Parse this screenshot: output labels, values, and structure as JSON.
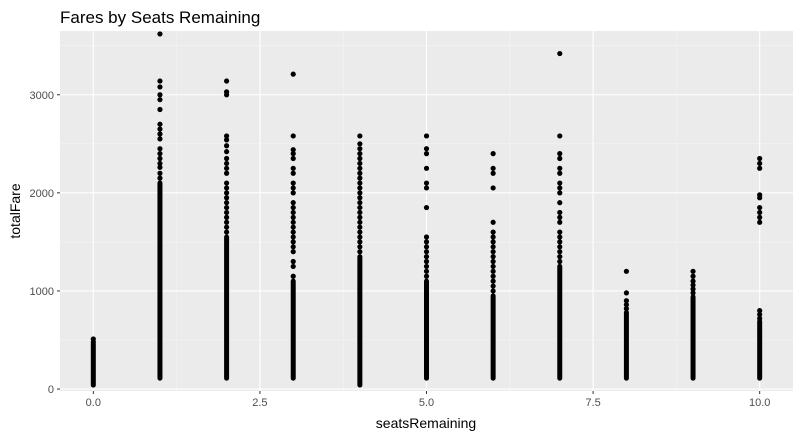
{
  "chart_data": {
    "type": "scatter",
    "title": "Fares by Seats Remaining",
    "xlabel": "seatsRemaining",
    "ylabel": "totalFare",
    "xlim": [
      -0.5,
      10.5
    ],
    "ylim": [
      -20,
      3650
    ],
    "x_ticks": [
      0.0,
      2.5,
      5.0,
      7.5,
      10.0
    ],
    "x_tick_labels": [
      "0.0",
      "2.5",
      "5.0",
      "7.5",
      "10.0"
    ],
    "y_ticks": [
      0,
      1000,
      2000,
      3000
    ],
    "y_tick_labels": [
      "0",
      "1000",
      "2000",
      "3000"
    ],
    "grid": true,
    "colors": {
      "panel": "#ebebeb",
      "grid_major": "#ffffff",
      "point": "#000000",
      "tick": "#4d4d4d"
    },
    "columns": [
      {
        "x": 0,
        "min": 40,
        "dense_max": 460,
        "outliers": [
          480,
          510
        ]
      },
      {
        "x": 1,
        "min": 110,
        "dense_max": 2100,
        "outliers": [
          2150,
          2200,
          2260,
          2300,
          2350,
          2400,
          2450,
          2550,
          2600,
          2650,
          2700,
          2850,
          2950,
          3000,
          3080,
          3140,
          3620
        ]
      },
      {
        "x": 2,
        "min": 110,
        "dense_max": 1550,
        "outliers": [
          1600,
          1650,
          1700,
          1750,
          1800,
          1850,
          1900,
          1950,
          2000,
          2050,
          2100,
          2200,
          2250,
          2300,
          2350,
          2420,
          2480,
          2540,
          2580,
          3000,
          3030,
          3140
        ]
      },
      {
        "x": 3,
        "min": 110,
        "dense_max": 1100,
        "outliers": [
          1150,
          1250,
          1300,
          1400,
          1450,
          1500,
          1550,
          1600,
          1650,
          1700,
          1750,
          1800,
          1850,
          1900,
          2000,
          2050,
          2100,
          2200,
          2250,
          2350,
          2400,
          2440,
          2580,
          3210
        ]
      },
      {
        "x": 4,
        "min": 40,
        "dense_max": 1350,
        "outliers": [
          1400,
          1450,
          1500,
          1550,
          1600,
          1650,
          1700,
          1750,
          1800,
          1850,
          1900,
          1950,
          2000,
          2050,
          2100,
          2150,
          2200,
          2250,
          2300,
          2350,
          2400,
          2450,
          2500,
          2580
        ]
      },
      {
        "x": 5,
        "min": 110,
        "dense_max": 1100,
        "outliers": [
          1150,
          1200,
          1250,
          1300,
          1350,
          1400,
          1450,
          1500,
          1550,
          1850,
          2050,
          2100,
          2250,
          2400,
          2450,
          2580
        ]
      },
      {
        "x": 6,
        "min": 110,
        "dense_max": 950,
        "outliers": [
          1000,
          1050,
          1100,
          1150,
          1200,
          1250,
          1300,
          1350,
          1400,
          1450,
          1500,
          1550,
          1600,
          1700,
          2050,
          2200,
          2250,
          2400
        ]
      },
      {
        "x": 7,
        "min": 110,
        "dense_max": 1250,
        "outliers": [
          1300,
          1350,
          1400,
          1450,
          1500,
          1550,
          1600,
          1700,
          1750,
          1800,
          1900,
          2000,
          2050,
          2100,
          2200,
          2250,
          2350,
          2400,
          2580,
          3420
        ]
      },
      {
        "x": 8,
        "min": 110,
        "dense_max": 780,
        "outliers": [
          820,
          860,
          900,
          980,
          1200
        ]
      },
      {
        "x": 9,
        "min": 110,
        "dense_max": 940,
        "outliers": [
          980,
          1020,
          1060,
          1100,
          1150,
          1200
        ]
      },
      {
        "x": 10,
        "min": 110,
        "dense_max": 690,
        "outliers": [
          720,
          760,
          800,
          1700,
          1750,
          1800,
          1850,
          1950,
          1980,
          2250,
          2300,
          2350
        ]
      }
    ]
  }
}
